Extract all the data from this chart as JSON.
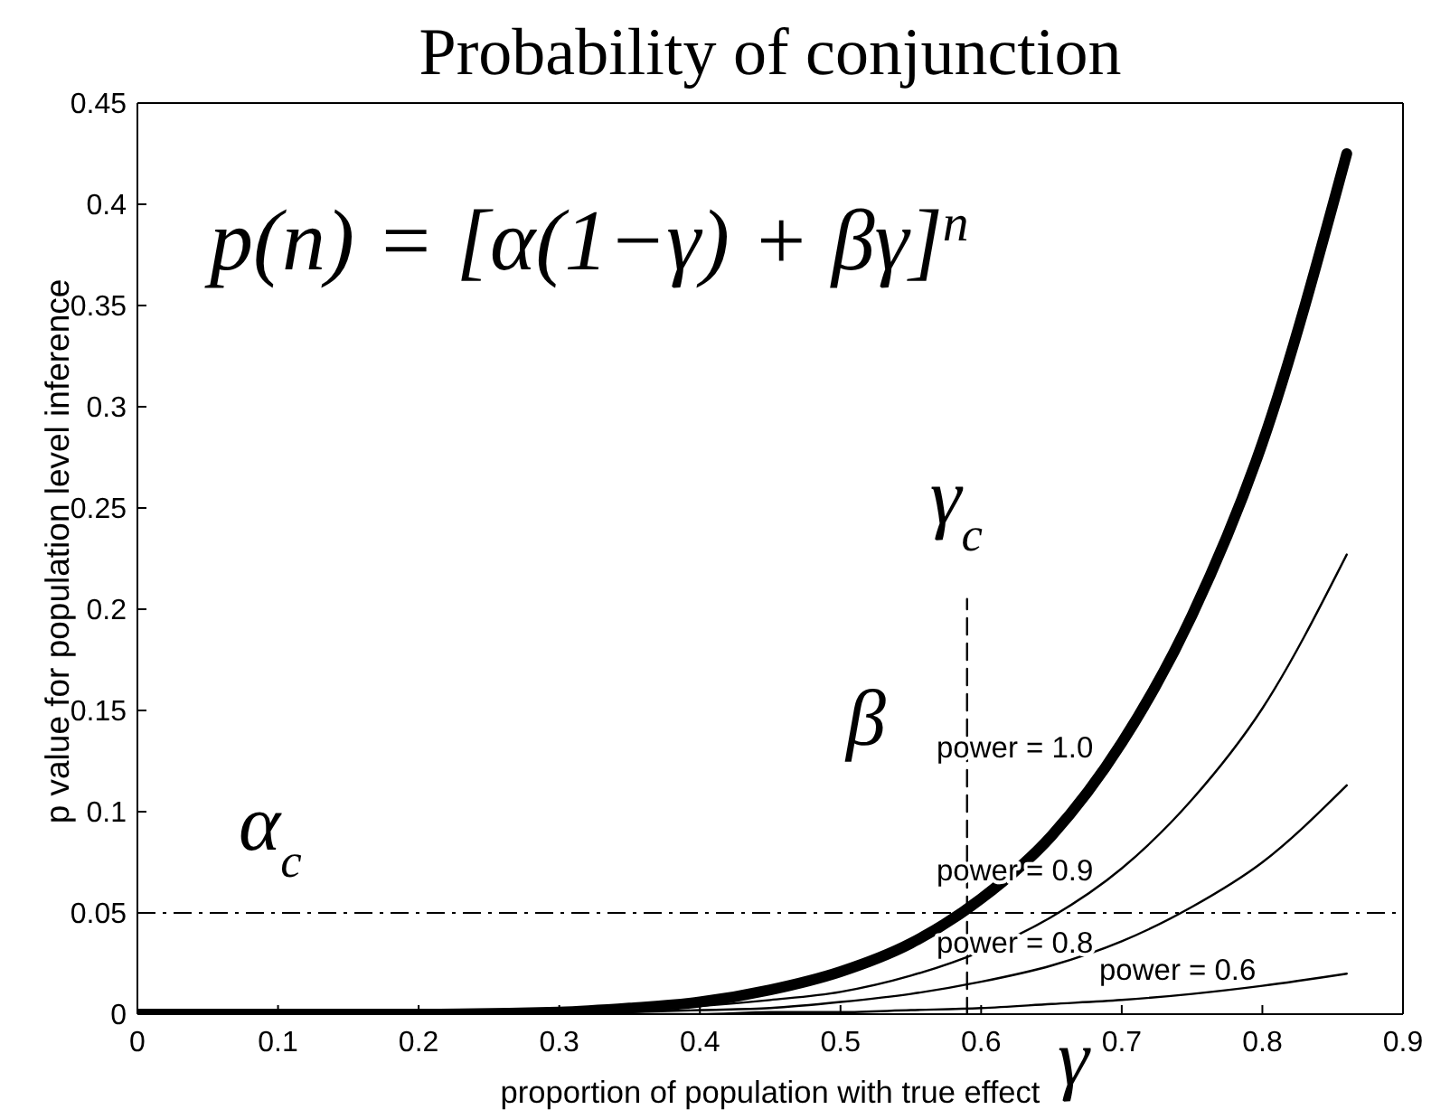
{
  "chart_data": {
    "type": "line",
    "title": "Probability of conjunction",
    "xlabel": "proportion of population with true effect",
    "ylabel": "p value for population level inference",
    "x": [
      0,
      0.1,
      0.2,
      0.3,
      0.35,
      0.4,
      0.45,
      0.5,
      0.55,
      0.6,
      0.65,
      0.7,
      0.75,
      0.8,
      0.86
    ],
    "series": [
      {
        "name": "power = 1.0",
        "color": "#000000",
        "values": [
          0,
          0,
          0,
          0.001,
          0.003,
          0.006,
          0.012,
          0.021,
          0.035,
          0.057,
          0.088,
          0.134,
          0.197,
          0.282,
          0.425
        ]
      },
      {
        "name": "power = 0.9",
        "color": "#000000",
        "values": [
          0,
          0,
          0,
          0.001,
          0.002,
          0.004,
          0.007,
          0.011,
          0.019,
          0.031,
          0.048,
          0.072,
          0.106,
          0.151,
          0.227
        ]
      },
      {
        "name": "power = 0.8",
        "color": "#000000",
        "values": [
          0,
          0,
          0,
          0,
          0.001,
          0.002,
          0.003,
          0.006,
          0.01,
          0.016,
          0.024,
          0.036,
          0.053,
          0.075,
          0.113
        ]
      },
      {
        "name": "power = 0.6",
        "color": "#000000",
        "values": [
          0,
          0,
          0,
          0,
          0,
          0,
          0.001,
          0.001,
          0.002,
          0.003,
          0.005,
          0.007,
          0.01,
          0.014,
          0.02
        ]
      },
      {
        "color": "#000000",
        "x": [
          0.59,
          0.59
        ],
        "values": [
          0,
          0.205
        ],
        "line_style": "dashed"
      }
    ],
    "xlim": [
      0,
      0.9
    ],
    "xticks": [
      0,
      0.1,
      0.2,
      0.3,
      0.4,
      0.5,
      0.6,
      0.7,
      0.8,
      0.9
    ],
    "ylim": [
      0,
      0.45
    ],
    "yticks": [
      0,
      0.05,
      0.1,
      0.15,
      0.2,
      0.25,
      0.3,
      0.35,
      0.4,
      0.45
    ],
    "ref_lines": [
      {
        "axis": "y",
        "value": 0.05,
        "label": "α$_{c}$",
        "color": "#000000",
        "line_style": "dashed"
      }
    ],
    "annotations": [
      "p(n) = [α(1−γ) + βγ]$^{n}$",
      {
        "text": "γ$_{c}$",
        "x": 0.59,
        "y": 0.205
      },
      "β",
      "γ"
    ],
    "marker": "none"
  }
}
